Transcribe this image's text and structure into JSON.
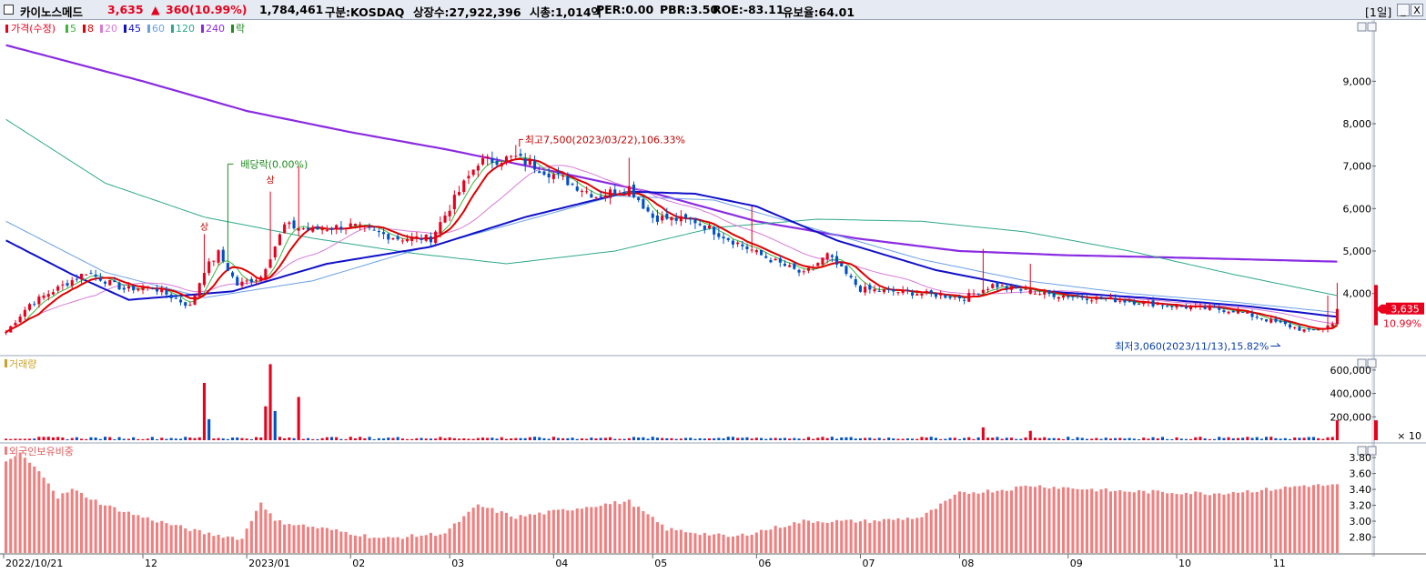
{
  "titlebar": {
    "name": "카이노스메드",
    "price": "3,635",
    "change_arrow": "▲",
    "change": "360",
    "change_pct": "(10.99%)",
    "volume": "1,784,461",
    "market": "구분:KOSDAQ",
    "listed": "상장수:27,922,396",
    "mktcap": "시총:1,014억",
    "per": "PER:0.00",
    "pbr": "PBR:3.50",
    "roe": "ROE:-83.11",
    "float": "유보율:64.01",
    "period": "[1일]",
    "btn_min": "_",
    "btn_close": "X",
    "colors": {
      "up": "#e8001c",
      "down": "#0050c8"
    }
  },
  "legend": {
    "price": "가격(수정)",
    "ma": [
      {
        "label": "5",
        "color": "#3cb43c"
      },
      {
        "label": "8",
        "color": "#e00000"
      },
      {
        "label": "20",
        "color": "#d77ad7"
      },
      {
        "label": "45",
        "color": "#1010c8"
      },
      {
        "label": "60",
        "color": "#6aa0e6"
      },
      {
        "label": "120",
        "color": "#2ea88a"
      },
      {
        "label": "240",
        "color": "#8a2be2"
      }
    ],
    "drop": "락"
  },
  "chart_data": [
    {
      "type": "candlestick",
      "panel": "price",
      "x_start": "2022/10/21",
      "x_end": "2023/11/21",
      "ylim": [
        2600,
        10400
      ],
      "yticks": [
        "9,000",
        "8,000",
        "7,000",
        "6,000",
        "5,000",
        "4,000"
      ],
      "ytick_values": [
        9000,
        8000,
        7000,
        6000,
        5000,
        4000
      ],
      "last_price": {
        "label": "3,635",
        "pct": "10.99%"
      },
      "annotations": {
        "high": "최고7,500(2023/03/22),106.33%",
        "low": "최저3,060(2023/11/13),15.82%",
        "dividend": "배당락(0.00%)",
        "limit_up": "상"
      },
      "close_keypoints": [
        {
          "d": "2022-10-21",
          "v": 3090
        },
        {
          "d": "2022-10-28",
          "v": 3750
        },
        {
          "d": "2022-11-15",
          "v": 4500
        },
        {
          "d": "2022-11-25",
          "v": 4100
        },
        {
          "d": "2022-12-05",
          "v": 4150
        },
        {
          "d": "2022-12-15",
          "v": 3700
        },
        {
          "d": "2022-12-20",
          "v": 4550
        },
        {
          "d": "2022-12-23",
          "v": 4950
        },
        {
          "d": "2022-12-29",
          "v": 4200
        },
        {
          "d": "2023-01-05",
          "v": 4400
        },
        {
          "d": "2023-01-12",
          "v": 5600
        },
        {
          "d": "2023-01-20",
          "v": 5500
        },
        {
          "d": "2023-02-01",
          "v": 5600
        },
        {
          "d": "2023-02-15",
          "v": 5300
        },
        {
          "d": "2023-02-24",
          "v": 5300
        },
        {
          "d": "2023-03-06",
          "v": 6400
        },
        {
          "d": "2023-03-10",
          "v": 7100
        },
        {
          "d": "2023-03-22",
          "v": 7200
        },
        {
          "d": "2023-04-03",
          "v": 6800
        },
        {
          "d": "2023-04-14",
          "v": 6300
        },
        {
          "d": "2023-04-25",
          "v": 6500
        },
        {
          "d": "2023-05-02",
          "v": 5800
        },
        {
          "d": "2023-05-15",
          "v": 5700
        },
        {
          "d": "2023-06-01",
          "v": 4950
        },
        {
          "d": "2023-06-15",
          "v": 4450
        },
        {
          "d": "2023-06-22",
          "v": 4900
        },
        {
          "d": "2023-07-03",
          "v": 4100
        },
        {
          "d": "2023-07-20",
          "v": 4000
        },
        {
          "d": "2023-08-02",
          "v": 3900
        },
        {
          "d": "2023-08-10",
          "v": 4200
        },
        {
          "d": "2023-08-24",
          "v": 4000
        },
        {
          "d": "2023-09-15",
          "v": 3850
        },
        {
          "d": "2023-10-04",
          "v": 3700
        },
        {
          "d": "2023-10-20",
          "v": 3600
        },
        {
          "d": "2023-11-13",
          "v": 3100
        },
        {
          "d": "2023-11-20",
          "v": 3275
        },
        {
          "d": "2023-11-21",
          "v": 3635
        }
      ],
      "ma_lines": {
        "45": [
          {
            "d": "2022-10-21",
            "v": 5250
          },
          {
            "d": "2022-11-10",
            "v": 4450
          },
          {
            "d": "2022-11-28",
            "v": 3850
          },
          {
            "d": "2022-12-28",
            "v": 4050
          },
          {
            "d": "2023-01-25",
            "v": 4700
          },
          {
            "d": "2023-02-25",
            "v": 5100
          },
          {
            "d": "2023-03-25",
            "v": 5800
          },
          {
            "d": "2023-04-25",
            "v": 6400
          },
          {
            "d": "2023-05-15",
            "v": 6350
          },
          {
            "d": "2023-06-01",
            "v": 6050
          },
          {
            "d": "2023-06-25",
            "v": 5250
          },
          {
            "d": "2023-07-25",
            "v": 4550
          },
          {
            "d": "2023-08-25",
            "v": 4050
          },
          {
            "d": "2023-09-25",
            "v": 3900
          },
          {
            "d": "2023-10-25",
            "v": 3700
          },
          {
            "d": "2023-11-21",
            "v": 3450
          }
        ],
        "60": [
          {
            "d": "2022-10-21",
            "v": 5700
          },
          {
            "d": "2022-11-20",
            "v": 4500
          },
          {
            "d": "2022-12-20",
            "v": 3900
          },
          {
            "d": "2023-01-20",
            "v": 4300
          },
          {
            "d": "2023-02-20",
            "v": 5000
          },
          {
            "d": "2023-03-20",
            "v": 5600
          },
          {
            "d": "2023-04-20",
            "v": 6300
          },
          {
            "d": "2023-05-20",
            "v": 6200
          },
          {
            "d": "2023-06-20",
            "v": 5500
          },
          {
            "d": "2023-07-20",
            "v": 4800
          },
          {
            "d": "2023-08-20",
            "v": 4300
          },
          {
            "d": "2023-09-20",
            "v": 4000
          },
          {
            "d": "2023-10-20",
            "v": 3800
          },
          {
            "d": "2023-11-21",
            "v": 3550
          }
        ],
        "120": [
          {
            "d": "2022-10-21",
            "v": 8100
          },
          {
            "d": "2022-11-20",
            "v": 6600
          },
          {
            "d": "2022-12-20",
            "v": 5800
          },
          {
            "d": "2023-01-20",
            "v": 5300
          },
          {
            "d": "2023-02-20",
            "v": 4950
          },
          {
            "d": "2023-03-20",
            "v": 4700
          },
          {
            "d": "2023-04-20",
            "v": 5000
          },
          {
            "d": "2023-05-20",
            "v": 5550
          },
          {
            "d": "2023-06-20",
            "v": 5750
          },
          {
            "d": "2023-07-20",
            "v": 5700
          },
          {
            "d": "2023-08-20",
            "v": 5450
          },
          {
            "d": "2023-09-20",
            "v": 5000
          },
          {
            "d": "2023-10-20",
            "v": 4450
          },
          {
            "d": "2023-11-21",
            "v": 3950
          }
        ],
        "240": [
          {
            "d": "2022-10-21",
            "v": 9850
          },
          {
            "d": "2022-12-01",
            "v": 9000
          },
          {
            "d": "2023-01-01",
            "v": 8300
          },
          {
            "d": "2023-02-01",
            "v": 7800
          },
          {
            "d": "2023-03-01",
            "v": 7400
          },
          {
            "d": "2023-04-01",
            "v": 6900
          },
          {
            "d": "2023-05-01",
            "v": 6400
          },
          {
            "d": "2023-06-01",
            "v": 5700
          },
          {
            "d": "2023-07-01",
            "v": 5300
          },
          {
            "d": "2023-08-01",
            "v": 5000
          },
          {
            "d": "2023-09-01",
            "v": 4900
          },
          {
            "d": "2023-10-01",
            "v": 4850
          },
          {
            "d": "2023-11-21",
            "v": 4750
          }
        ]
      }
    },
    {
      "type": "bar",
      "panel": "volume",
      "title": "거래량",
      "ylim": [
        0,
        700000
      ],
      "yticks": [
        "600,000",
        "400,000",
        "200,000"
      ],
      "ytick_values": [
        600000,
        400000,
        200000
      ],
      "unit": "× 10",
      "spikes": [
        {
          "d": "2022-12-20",
          "v": 490000,
          "dir": "up"
        },
        {
          "d": "2022-12-21",
          "v": 180000,
          "dir": "down"
        },
        {
          "d": "2023-01-06",
          "v": 290000,
          "dir": "up"
        },
        {
          "d": "2023-01-09",
          "v": 650000,
          "dir": "up"
        },
        {
          "d": "2023-01-10",
          "v": 250000,
          "dir": "down"
        },
        {
          "d": "2023-01-17",
          "v": 370000,
          "dir": "up"
        },
        {
          "d": "2023-08-08",
          "v": 110000,
          "dir": "up"
        },
        {
          "d": "2023-08-22",
          "v": 80000,
          "dir": "up"
        },
        {
          "d": "2023-11-21",
          "v": 170000,
          "dir": "up"
        }
      ]
    },
    {
      "type": "bar",
      "panel": "foreign",
      "title": "외국인보유비중",
      "ylim": [
        2.6,
        3.95
      ],
      "yticks": [
        "3.80",
        "3.60",
        "3.40",
        "3.20",
        "3.00",
        "2.80"
      ],
      "ytick_values": [
        3.8,
        3.6,
        3.4,
        3.2,
        3.0,
        2.8
      ],
      "keypoints": [
        {
          "d": "2022-10-21",
          "v": 3.75
        },
        {
          "d": "2022-10-26",
          "v": 3.85
        },
        {
          "d": "2022-11-03",
          "v": 3.5
        },
        {
          "d": "2022-11-07",
          "v": 3.3
        },
        {
          "d": "2022-11-10",
          "v": 3.4
        },
        {
          "d": "2022-11-20",
          "v": 3.2
        },
        {
          "d": "2022-12-01",
          "v": 3.05
        },
        {
          "d": "2022-12-20",
          "v": 2.85
        },
        {
          "d": "2022-12-30",
          "v": 2.78
        },
        {
          "d": "2023-01-05",
          "v": 3.25
        },
        {
          "d": "2023-01-10",
          "v": 3.0
        },
        {
          "d": "2023-01-25",
          "v": 2.9
        },
        {
          "d": "2023-02-10",
          "v": 2.78
        },
        {
          "d": "2023-03-01",
          "v": 2.85
        },
        {
          "d": "2023-03-10",
          "v": 3.2
        },
        {
          "d": "2023-03-22",
          "v": 3.05
        },
        {
          "d": "2023-04-15",
          "v": 3.2
        },
        {
          "d": "2023-04-25",
          "v": 3.25
        },
        {
          "d": "2023-05-05",
          "v": 2.9
        },
        {
          "d": "2023-05-25",
          "v": 2.8
        },
        {
          "d": "2023-06-15",
          "v": 3.0
        },
        {
          "d": "2023-07-05",
          "v": 3.0
        },
        {
          "d": "2023-07-20",
          "v": 3.05
        },
        {
          "d": "2023-08-01",
          "v": 3.35
        },
        {
          "d": "2023-08-15",
          "v": 3.4
        },
        {
          "d": "2023-08-22",
          "v": 3.45
        },
        {
          "d": "2023-09-15",
          "v": 3.38
        },
        {
          "d": "2023-10-15",
          "v": 3.35
        },
        {
          "d": "2023-11-01",
          "v": 3.4
        },
        {
          "d": "2023-11-10",
          "v": 3.45
        },
        {
          "d": "2023-11-21",
          "v": 3.45
        }
      ]
    }
  ],
  "xaxis": {
    "labels": [
      {
        "d": "2022-10-21",
        "text": "2022/10/21"
      },
      {
        "d": "2022-12-01",
        "text": "12"
      },
      {
        "d": "2023-01-02",
        "text": "2023/01"
      },
      {
        "d": "2023-02-01",
        "text": "02"
      },
      {
        "d": "2023-03-02",
        "text": "03"
      },
      {
        "d": "2023-04-03",
        "text": "04"
      },
      {
        "d": "2023-05-02",
        "text": "05"
      },
      {
        "d": "2023-06-01",
        "text": "06"
      },
      {
        "d": "2023-07-03",
        "text": "07"
      },
      {
        "d": "2023-08-01",
        "text": "08"
      },
      {
        "d": "2023-09-01",
        "text": "09"
      },
      {
        "d": "2023-10-04",
        "text": "10"
      },
      {
        "d": "2023-11-01",
        "text": "11"
      }
    ]
  }
}
